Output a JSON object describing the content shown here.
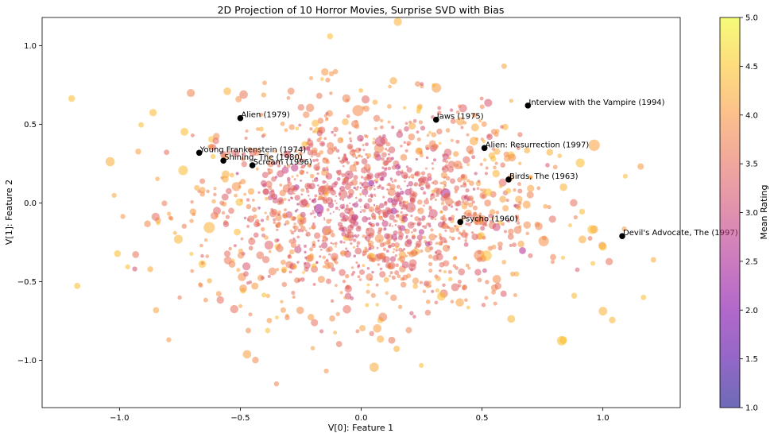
{
  "chart_data": {
    "type": "scatter",
    "title": "2D Projection of 10 Horror Movies, Surprise SVD with Bias",
    "xlabel": "V[0]: Feature 1",
    "ylabel": "V[1]: Feature 2",
    "xlim": [
      -1.32,
      1.32
    ],
    "ylim": [
      -1.3,
      1.18
    ],
    "x_ticks": [
      -1.0,
      -0.5,
      0.0,
      0.5,
      1.0
    ],
    "x_tick_labels": [
      "−1.0",
      "−0.5",
      "0.0",
      "0.5",
      "1.0"
    ],
    "y_ticks": [
      -1.0,
      -0.5,
      0.0,
      0.5,
      1.0
    ],
    "y_tick_labels": [
      "−1.0",
      "−0.5",
      "0.0",
      "0.5",
      "1.0"
    ],
    "grid": false,
    "colormap": "plasma",
    "colorbar": {
      "label": "Mean Rating",
      "range": [
        1.0,
        5.0
      ],
      "ticks": [
        1.0,
        1.5,
        2.0,
        2.5,
        3.0,
        3.5,
        4.0,
        4.5,
        5.0
      ],
      "tick_labels": [
        "1.0",
        "1.5",
        "2.0",
        "2.5",
        "3.0",
        "3.5",
        "4.0",
        "4.5",
        "5.0"
      ]
    },
    "background_point_count": 1600,
    "highlighted": {
      "color": "#000000",
      "points": [
        {
          "label": "Young Frankenstein (1974)",
          "x": -0.67,
          "y": 0.32
        },
        {
          "label": "Alien (1979)",
          "x": -0.5,
          "y": 0.54
        },
        {
          "label": "Shining, The (1980)",
          "x": -0.57,
          "y": 0.27
        },
        {
          "label": "Scream (1996)",
          "x": -0.45,
          "y": 0.24
        },
        {
          "label": "Jaws (1975)",
          "x": 0.31,
          "y": 0.53
        },
        {
          "label": "Interview with the Vampire (1994)",
          "x": 0.69,
          "y": 0.62
        },
        {
          "label": "Alien: Resurrection (1997)",
          "x": 0.51,
          "y": 0.35
        },
        {
          "label": "Birds, The (1963)",
          "x": 0.61,
          "y": 0.15
        },
        {
          "label": "Psycho (1960)",
          "x": 0.41,
          "y": -0.12
        },
        {
          "label": "Devil's Advocate, The (1997)",
          "x": 1.08,
          "y": -0.21
        }
      ]
    }
  }
}
